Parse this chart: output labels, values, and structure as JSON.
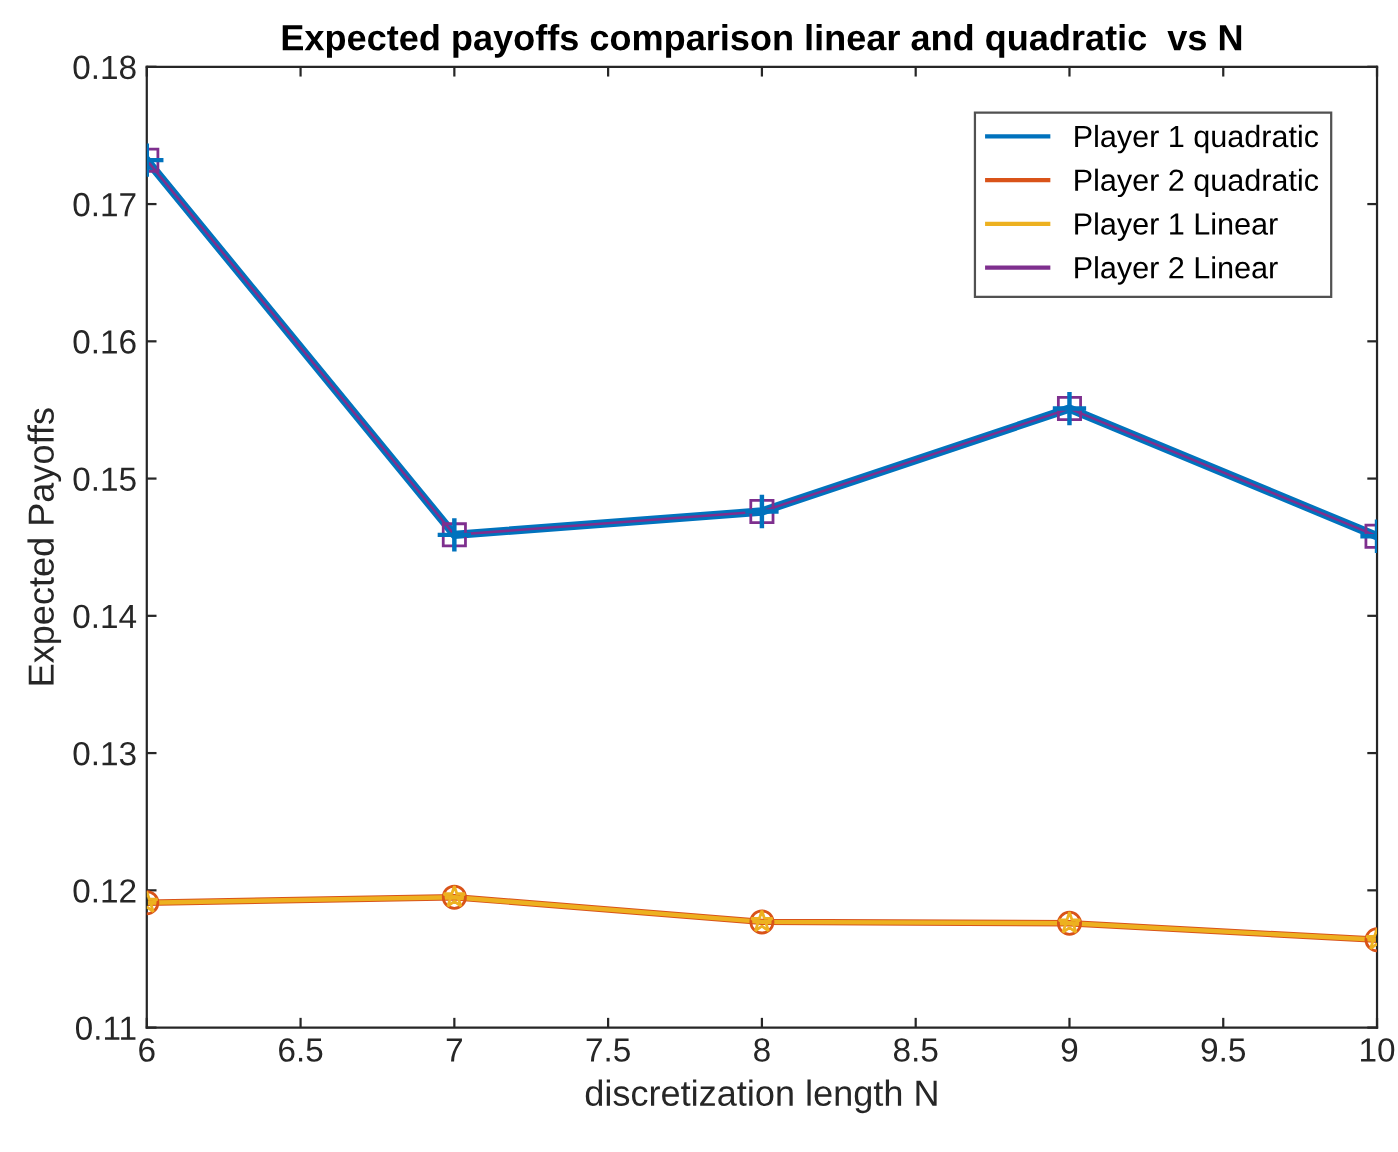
{
  "chart_data": {
    "type": "line",
    "title": "Expected payoffs comparison linear and quadratic  vs N",
    "xlabel": "discretization length N",
    "ylabel": "Expected Payoffs",
    "x": [
      6,
      7,
      8,
      9,
      10
    ],
    "series": [
      {
        "name": "Player 1 quadratic",
        "color": "#0072bd",
        "marker": "cross",
        "values": [
          0.1732,
          0.1459,
          0.1476,
          0.1551,
          0.1458
        ]
      },
      {
        "name": "Player 2 quadratic",
        "color": "#d95319",
        "marker": "circle",
        "values": [
          0.1191,
          0.1195,
          0.1177,
          0.1176,
          0.1164
        ]
      },
      {
        "name": "Player 1 Linear",
        "color": "#edb120",
        "marker": "star",
        "values": [
          0.1191,
          0.1195,
          0.1177,
          0.1176,
          0.1164
        ]
      },
      {
        "name": "Player 2 Linear",
        "color": "#7e2f8e",
        "marker": "square",
        "values": [
          0.1732,
          0.1459,
          0.1476,
          0.1551,
          0.1458
        ]
      }
    ],
    "xlim": [
      6,
      10
    ],
    "ylim": [
      0.11,
      0.18
    ],
    "xticks": [
      6,
      6.5,
      7,
      7.5,
      8,
      8.5,
      9,
      9.5,
      10
    ],
    "yticks": [
      0.11,
      0.12,
      0.13,
      0.14,
      0.15,
      0.16,
      0.17,
      0.18
    ],
    "grid": false,
    "legend": "top right",
    "line_style": "solid"
  }
}
